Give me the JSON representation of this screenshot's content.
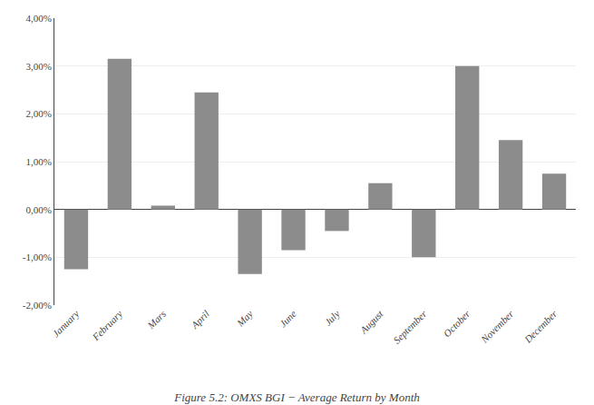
{
  "chart_data": {
    "type": "bar",
    "title": "Figure 5.2: OMXS BGI − Average Return by Month",
    "categories": [
      "January",
      "February",
      "Mars",
      "April",
      "May",
      "June",
      "July",
      "August",
      "September",
      "October",
      "November",
      "December"
    ],
    "values": [
      -0.0125,
      0.0315,
      0.0008,
      0.0245,
      -0.0135,
      -0.0085,
      -0.0045,
      0.0055,
      -0.01,
      0.03,
      0.0145,
      0.0075
    ],
    "color": "#8c8c8c",
    "ylim": [
      -0.02,
      0.04
    ],
    "yticks": [
      {
        "value": -0.02,
        "label": "-2,00%"
      },
      {
        "value": -0.01,
        "label": "-1,00%"
      },
      {
        "value": 0.0,
        "label": "0,00%"
      },
      {
        "value": 0.01,
        "label": "1,00%"
      },
      {
        "value": 0.02,
        "label": "2,00%"
      },
      {
        "value": 0.03,
        "label": "3,00%"
      },
      {
        "value": 0.04,
        "label": "4,00%"
      }
    ],
    "grid": true
  }
}
